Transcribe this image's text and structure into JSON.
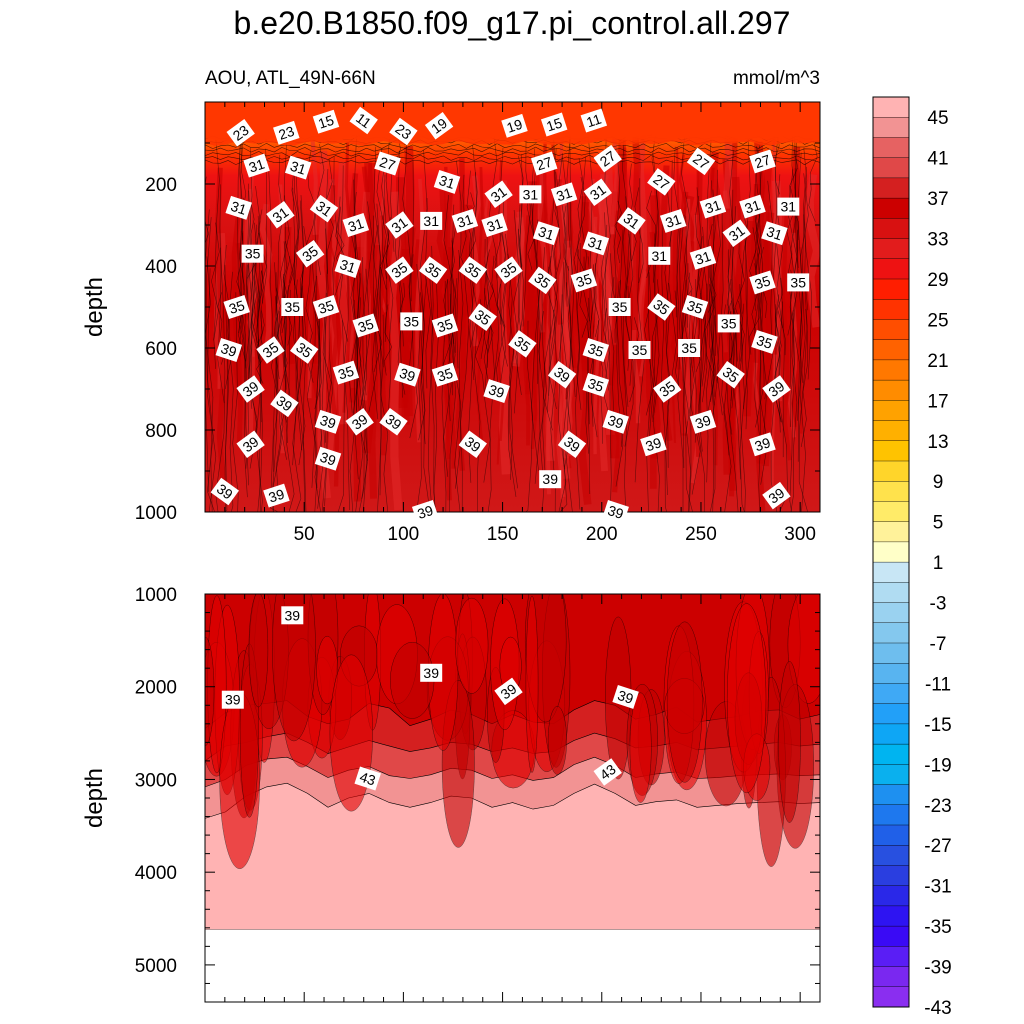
{
  "title": "b.e20.B1850.f09_g17.pi_control.all.297",
  "subtitle_left": "AOU, ATL_49N-66N",
  "subtitle_right": "mmol/m^3",
  "chart_data": {
    "type": "heatmap",
    "colorbar": {
      "labels": [
        "45",
        "41",
        "37",
        "33",
        "29",
        "25",
        "21",
        "17",
        "13",
        "9",
        "5",
        "1",
        "-3",
        "-7",
        "-11",
        "-15",
        "-19",
        "-23",
        "-27",
        "-31",
        "-35",
        "-39",
        "-43"
      ],
      "colors": [
        "#ffb3b3",
        "#f29393",
        "#e66262",
        "#e04848",
        "#d42020",
        "#cc0000",
        "#d81111",
        "#e21c1c",
        "#ee1212",
        "#ff1e00",
        "#ff3300",
        "#ff4e00",
        "#ff6200",
        "#ff7800",
        "#ff8c00",
        "#ffa200",
        "#ffb000",
        "#ffc300",
        "#ffd52a",
        "#ffe24c",
        "#ffeb68",
        "#fff29a",
        "#ffffc8",
        "#c8e6f5",
        "#b0dcf2",
        "#9ad2f0",
        "#84c8ee",
        "#6ebeee",
        "#58b4f0",
        "#3fa9f5",
        "#22a0f8",
        "#0ea6f5",
        "#00b4f0",
        "#0ab0ee",
        "#1e90f0",
        "#1e78ee",
        "#2060e8",
        "#2850e0",
        "#2a3ee0",
        "#2a28e8",
        "#2e14f2",
        "#3a0af5",
        "#5a1ef5",
        "#7a28f0",
        "#8a2ef0"
      ]
    },
    "panels": [
      {
        "ylabel": "depth",
        "yticks": [
          "200",
          "400",
          "600",
          "800",
          "1000"
        ],
        "xticks": [
          "50",
          "100",
          "150",
          "200",
          "250",
          "300"
        ],
        "ylim": [
          0,
          1000
        ],
        "xlim": [
          0,
          310
        ],
        "contour_labels": [
          {
            "text": "23",
            "x": 18,
            "y": 75
          },
          {
            "text": "23",
            "x": 41,
            "y": 75
          },
          {
            "text": "15",
            "x": 61,
            "y": 48
          },
          {
            "text": "11",
            "x": 80,
            "y": 45
          },
          {
            "text": "23",
            "x": 100,
            "y": 72
          },
          {
            "text": "19",
            "x": 118,
            "y": 58
          },
          {
            "text": "19",
            "x": 156,
            "y": 58
          },
          {
            "text": "15",
            "x": 176,
            "y": 55
          },
          {
            "text": "11",
            "x": 196,
            "y": 45
          },
          {
            "text": "31",
            "x": 26,
            "y": 155
          },
          {
            "text": "31",
            "x": 47,
            "y": 160
          },
          {
            "text": "27",
            "x": 92,
            "y": 150
          },
          {
            "text": "27",
            "x": 171,
            "y": 150
          },
          {
            "text": "27",
            "x": 203,
            "y": 138
          },
          {
            "text": "27",
            "x": 250,
            "y": 145
          },
          {
            "text": "27",
            "x": 281,
            "y": 145
          },
          {
            "text": "31",
            "x": 122,
            "y": 195
          },
          {
            "text": "31",
            "x": 148,
            "y": 225
          },
          {
            "text": "31",
            "x": 164,
            "y": 225
          },
          {
            "text": "31",
            "x": 181,
            "y": 225
          },
          {
            "text": "31",
            "x": 198,
            "y": 220
          },
          {
            "text": "27",
            "x": 230,
            "y": 195
          },
          {
            "text": "31",
            "x": 17,
            "y": 258
          },
          {
            "text": "31",
            "x": 38,
            "y": 275
          },
          {
            "text": "31",
            "x": 60,
            "y": 260
          },
          {
            "text": "31",
            "x": 76,
            "y": 300
          },
          {
            "text": "31",
            "x": 98,
            "y": 300
          },
          {
            "text": "31",
            "x": 114,
            "y": 290
          },
          {
            "text": "31",
            "x": 131,
            "y": 290
          },
          {
            "text": "31",
            "x": 146,
            "y": 300
          },
          {
            "text": "31",
            "x": 172,
            "y": 320
          },
          {
            "text": "31",
            "x": 215,
            "y": 290
          },
          {
            "text": "31",
            "x": 236,
            "y": 290
          },
          {
            "text": "31",
            "x": 256,
            "y": 255
          },
          {
            "text": "31",
            "x": 276,
            "y": 255
          },
          {
            "text": "31",
            "x": 294,
            "y": 255
          },
          {
            "text": "31",
            "x": 197,
            "y": 345
          },
          {
            "text": "31",
            "x": 229,
            "y": 375
          },
          {
            "text": "31",
            "x": 251,
            "y": 380
          },
          {
            "text": "31",
            "x": 268,
            "y": 320
          },
          {
            "text": "31",
            "x": 287,
            "y": 320
          },
          {
            "text": "35",
            "x": 24,
            "y": 370
          },
          {
            "text": "35",
            "x": 53,
            "y": 370
          },
          {
            "text": "31",
            "x": 72,
            "y": 400
          },
          {
            "text": "35",
            "x": 98,
            "y": 410
          },
          {
            "text": "35",
            "x": 115,
            "y": 410
          },
          {
            "text": "35",
            "x": 135,
            "y": 410
          },
          {
            "text": "35",
            "x": 153,
            "y": 410
          },
          {
            "text": "35",
            "x": 170,
            "y": 435
          },
          {
            "text": "35",
            "x": 191,
            "y": 435
          },
          {
            "text": "35",
            "x": 281,
            "y": 440
          },
          {
            "text": "35",
            "x": 299,
            "y": 440
          },
          {
            "text": "35",
            "x": 16,
            "y": 500
          },
          {
            "text": "35",
            "x": 44,
            "y": 500
          },
          {
            "text": "35",
            "x": 61,
            "y": 500
          },
          {
            "text": "35",
            "x": 81,
            "y": 545
          },
          {
            "text": "35",
            "x": 104,
            "y": 535
          },
          {
            "text": "35",
            "x": 121,
            "y": 545
          },
          {
            "text": "35",
            "x": 140,
            "y": 525
          },
          {
            "text": "35",
            "x": 209,
            "y": 500
          },
          {
            "text": "35",
            "x": 230,
            "y": 500
          },
          {
            "text": "35",
            "x": 247,
            "y": 500
          },
          {
            "text": "35",
            "x": 264,
            "y": 540
          },
          {
            "text": "35",
            "x": 160,
            "y": 590
          },
          {
            "text": "35",
            "x": 197,
            "y": 605
          },
          {
            "text": "35",
            "x": 219,
            "y": 605
          },
          {
            "text": "35",
            "x": 244,
            "y": 600
          },
          {
            "text": "35",
            "x": 282,
            "y": 585
          },
          {
            "text": "39",
            "x": 12,
            "y": 605
          },
          {
            "text": "35",
            "x": 33,
            "y": 605
          },
          {
            "text": "35",
            "x": 50,
            "y": 605
          },
          {
            "text": "35",
            "x": 71,
            "y": 660
          },
          {
            "text": "39",
            "x": 102,
            "y": 665
          },
          {
            "text": "35",
            "x": 121,
            "y": 665
          },
          {
            "text": "39",
            "x": 147,
            "y": 705
          },
          {
            "text": "39",
            "x": 180,
            "y": 665
          },
          {
            "text": "35",
            "x": 197,
            "y": 690
          },
          {
            "text": "35",
            "x": 233,
            "y": 700
          },
          {
            "text": "35",
            "x": 265,
            "y": 665
          },
          {
            "text": "39",
            "x": 288,
            "y": 700
          },
          {
            "text": "39",
            "x": 23,
            "y": 700
          },
          {
            "text": "39",
            "x": 40,
            "y": 735
          },
          {
            "text": "39",
            "x": 62,
            "y": 780
          },
          {
            "text": "39",
            "x": 78,
            "y": 780
          },
          {
            "text": "39",
            "x": 95,
            "y": 780
          },
          {
            "text": "39",
            "x": 207,
            "y": 780
          },
          {
            "text": "39",
            "x": 251,
            "y": 780
          },
          {
            "text": "39",
            "x": 23,
            "y": 835
          },
          {
            "text": "39",
            "x": 62,
            "y": 870
          },
          {
            "text": "39",
            "x": 135,
            "y": 835
          },
          {
            "text": "39",
            "x": 185,
            "y": 835
          },
          {
            "text": "39",
            "x": 226,
            "y": 835
          },
          {
            "text": "39",
            "x": 281,
            "y": 835
          },
          {
            "text": "39",
            "x": 10,
            "y": 950
          },
          {
            "text": "39",
            "x": 36,
            "y": 960
          },
          {
            "text": "39",
            "x": 174,
            "y": 920
          },
          {
            "text": "39",
            "x": 111,
            "y": 1000
          },
          {
            "text": "39",
            "x": 207,
            "y": 1000
          },
          {
            "text": "39",
            "x": 288,
            "y": 960
          }
        ]
      },
      {
        "ylabel": "depth",
        "yticks": [
          "1000",
          "2000",
          "3000",
          "4000",
          "5000"
        ],
        "ylim": [
          1000,
          5400
        ],
        "xlim": [
          0,
          310
        ],
        "bottom_depth": 4620,
        "band_levels": [
          {
            "name": ">45",
            "color": "#ffb3b3",
            "boundary": [
              3420,
              3350,
              3180,
              3080,
              3040,
              3150,
              3300,
              3200,
              3150,
              3250,
              3300,
              3250,
              3180,
              3200,
              3300,
              3250,
              3320,
              3280,
              3150,
              3050,
              3150,
              3280,
              3240,
              3220,
              3300,
              3280,
              3260,
              3250,
              3240,
              3260,
              3250
            ]
          },
          {
            "name": "43-45",
            "color": "#f29393",
            "boundary": [
              3080,
              3000,
              2850,
              2780,
              2760,
              2860,
              2980,
              2900,
              2860,
              2960,
              2990,
              2950,
              2880,
              2900,
              2990,
              2950,
              3010,
              2980,
              2840,
              2760,
              2850,
              2980,
              2940,
              2920,
              2990,
              2980,
              2960,
              2950,
              2940,
              2960,
              2950
            ]
          },
          {
            "name": "41-43",
            "color": "#e04848",
            "boundary": [
              2800,
              2640,
              2600,
              2540,
              2500,
              2600,
              2720,
              2650,
              2580,
              2640,
              2700,
              2660,
              2600,
              2620,
              2700,
              2660,
              2720,
              2700,
              2580,
              2500,
              2560,
              2660,
              2640,
              2600,
              2680,
              2660,
              2640,
              2620,
              2600,
              2640,
              2620
            ]
          },
          {
            "name": "39-41",
            "color": "#d42020",
            "boundary": [
              2450,
              2280,
              2200,
              2180,
              2150,
              2320,
              2400,
              2350,
              2180,
              2230,
              2420,
              2350,
              2250,
              2300,
              2400,
              2300,
              2380,
              2400,
              2250,
              2150,
              2200,
              2350,
              2300,
              2220,
              2380,
              2350,
              2320,
              2260,
              2250,
              2350,
              2300
            ]
          },
          {
            "name": "37-39",
            "color": "#cc0000",
            "boundary": [
              1000
            ]
          }
        ],
        "contour_labels": [
          {
            "text": "39",
            "x": 44,
            "y": 1230
          },
          {
            "text": "39",
            "x": 114,
            "y": 1850
          },
          {
            "text": "39",
            "x": 153,
            "y": 2050
          },
          {
            "text": "39",
            "x": 212,
            "y": 2110
          },
          {
            "text": "39",
            "x": 14,
            "y": 2140
          },
          {
            "text": "43",
            "x": 82,
            "y": 2990
          },
          {
            "text": "43",
            "x": 203,
            "y": 2920
          }
        ]
      }
    ]
  }
}
